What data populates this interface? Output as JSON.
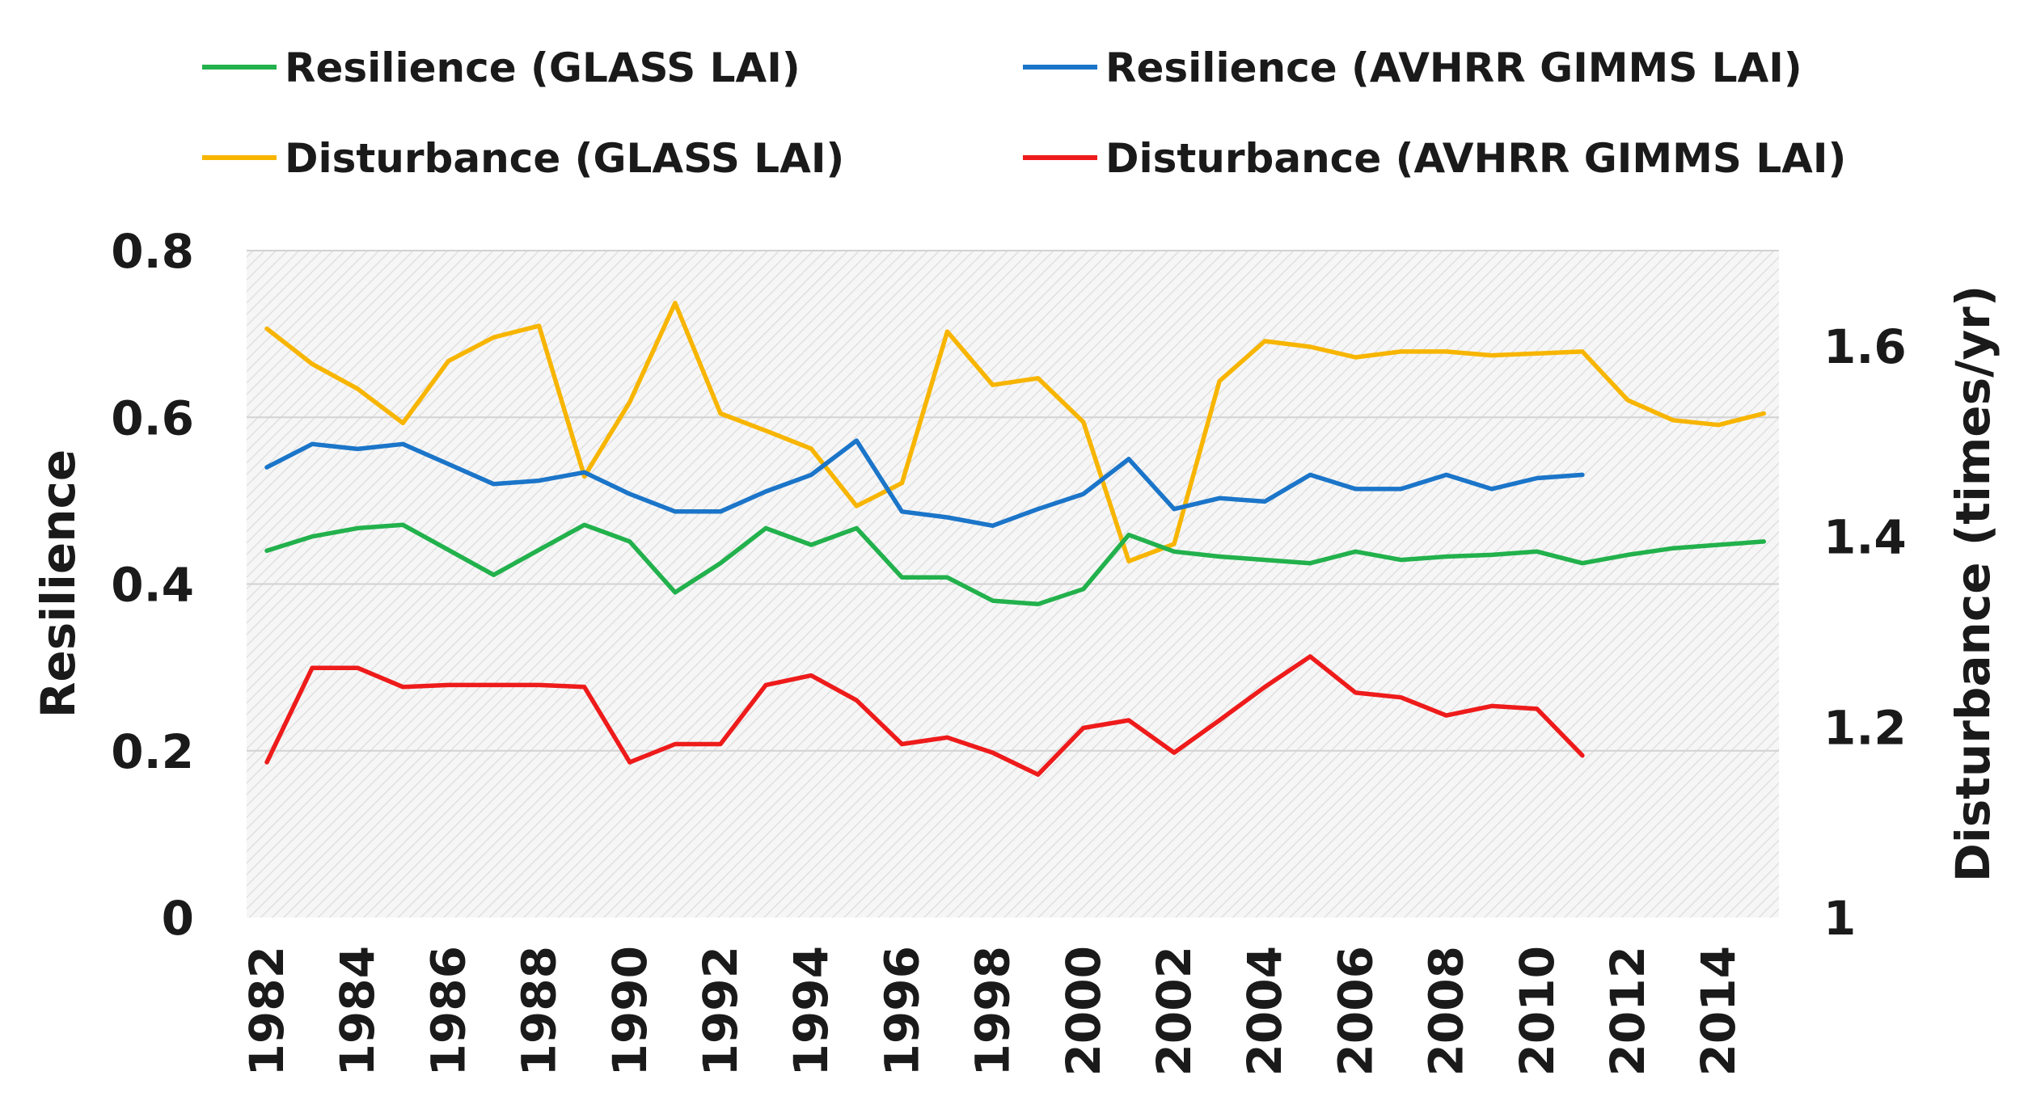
{
  "chart_data": {
    "type": "line",
    "title": "",
    "xlabel": "",
    "ylabel": "Resilience",
    "ylabel_right": "Disturbance (times/yr)",
    "ylim": [
      0,
      0.8
    ],
    "ylim_right": [
      1,
      1.7
    ],
    "grid": true,
    "legend_position": "top",
    "x": [
      1982,
      1983,
      1984,
      1985,
      1986,
      1987,
      1988,
      1989,
      1990,
      1991,
      1992,
      1993,
      1994,
      1995,
      1996,
      1997,
      1998,
      1999,
      2000,
      2001,
      2002,
      2003,
      2004,
      2005,
      2006,
      2007,
      2008,
      2009,
      2010,
      2011,
      2012,
      2013,
      2014,
      2015
    ],
    "x_tick_labels": [
      "1982",
      "1984",
      "1986",
      "1988",
      "1990",
      "1992",
      "1994",
      "1996",
      "1998",
      "2000",
      "2002",
      "2004",
      "2006",
      "2008",
      "2010",
      "2012",
      "2014"
    ],
    "y_tick_labels": [
      "0",
      "0.2",
      "0.4",
      "0.6",
      "0.8"
    ],
    "y_tick_labels_right": [
      "1",
      "1.2",
      "1.4",
      "1.6"
    ],
    "series": [
      {
        "name": "Resilience (GLASS LAI)",
        "axis": "left",
        "color": "#22b14c",
        "values": [
          0.44,
          0.457,
          0.467,
          0.471,
          0.441,
          0.411,
          0.441,
          0.471,
          0.451,
          0.39,
          0.425,
          0.467,
          0.447,
          0.467,
          0.408,
          0.408,
          0.38,
          0.376,
          0.394,
          0.459,
          0.439,
          0.433,
          0.429,
          0.425,
          0.439,
          0.429,
          0.433,
          0.435,
          0.439,
          0.425,
          0.435,
          0.443,
          0.447,
          0.451
        ]
      },
      {
        "name": "Resilience (AVHRR GIMMS LAI)",
        "axis": "left",
        "color": "#1b75c9",
        "values": [
          0.54,
          0.568,
          0.562,
          0.568,
          0.544,
          0.52,
          0.524,
          0.534,
          0.508,
          0.487,
          0.487,
          0.511,
          0.531,
          0.572,
          0.487,
          0.48,
          0.47,
          0.49,
          0.508,
          0.55,
          0.49,
          0.503,
          0.499,
          0.531,
          0.514,
          0.514,
          0.531,
          0.514,
          0.527,
          0.531,
          null,
          null,
          null,
          null
        ]
      },
      {
        "name": "Disturbance (GLASS LAI)",
        "axis": "right",
        "color": "#f7b500",
        "values": [
          1.618,
          1.581,
          1.555,
          1.519,
          1.584,
          1.609,
          1.621,
          1.463,
          1.541,
          1.645,
          1.529,
          1.511,
          1.492,
          1.432,
          1.456,
          1.615,
          1.559,
          1.566,
          1.52,
          1.374,
          1.392,
          1.563,
          1.605,
          1.599,
          1.588,
          1.594,
          1.594,
          1.59,
          1.592,
          1.594,
          1.543,
          1.522,
          1.517,
          1.529
        ]
      },
      {
        "name": "Disturbance (AVHRR GIMMS LAI)",
        "axis": "right",
        "color": "#ee1b1b",
        "values": [
          1.163,
          1.262,
          1.262,
          1.242,
          1.244,
          1.244,
          1.244,
          1.242,
          1.163,
          1.182,
          1.182,
          1.244,
          1.254,
          1.228,
          1.182,
          1.189,
          1.173,
          1.15,
          1.199,
          1.207,
          1.173,
          1.207,
          1.242,
          1.274,
          1.236,
          1.231,
          1.212,
          1.222,
          1.219,
          1.17,
          null,
          null,
          null,
          null
        ]
      }
    ]
  },
  "legend": {
    "items": [
      {
        "label": "Resilience (GLASS LAI)",
        "color": "#22b14c"
      },
      {
        "label": "Resilience (AVHRR GIMMS LAI)",
        "color": "#1b75c9"
      },
      {
        "label": "Disturbance (GLASS LAI)",
        "color": "#f7b500"
      },
      {
        "label": "Disturbance (AVHRR GIMMS LAI)",
        "color": "#ee1b1b"
      }
    ]
  }
}
